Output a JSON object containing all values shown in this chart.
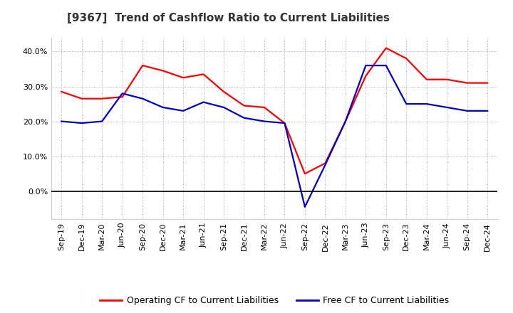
{
  "title": "[9367]  Trend of Cashflow Ratio to Current Liabilities",
  "labels": [
    "Sep-19",
    "Dec-19",
    "Mar-20",
    "Jun-20",
    "Sep-20",
    "Dec-20",
    "Mar-21",
    "Jun-21",
    "Sep-21",
    "Dec-21",
    "Mar-22",
    "Jun-22",
    "Sep-22",
    "Dec-22",
    "Mar-23",
    "Jun-23",
    "Sep-23",
    "Dec-23",
    "Mar-24",
    "Jun-24",
    "Sep-24",
    "Dec-24"
  ],
  "operating_cf": [
    28.5,
    26.5,
    26.5,
    27.0,
    36.0,
    34.5,
    32.5,
    33.5,
    28.5,
    24.5,
    24.0,
    19.5,
    5.0,
    8.0,
    20.0,
    33.0,
    41.0,
    38.0,
    32.0,
    32.0,
    31.0,
    31.0
  ],
  "free_cf": [
    20.0,
    19.5,
    20.0,
    28.0,
    26.5,
    24.0,
    23.0,
    25.5,
    24.0,
    21.0,
    20.0,
    19.5,
    -4.5,
    7.5,
    20.0,
    36.0,
    36.0,
    25.0,
    25.0,
    24.0,
    23.0,
    23.0
  ],
  "operating_color": "#FF0000",
  "free_color": "#0000CC",
  "ylim_min": -8.0,
  "ylim_max": 44.0,
  "yticks": [
    0.0,
    10.0,
    20.0,
    30.0,
    40.0
  ],
  "background_color": "#FFFFFF",
  "plot_bg_color": "#F0F0F0",
  "grid_color": "#999999",
  "line_width": 1.6,
  "title_fontsize": 11,
  "tick_fontsize": 8,
  "legend_fontsize": 9
}
